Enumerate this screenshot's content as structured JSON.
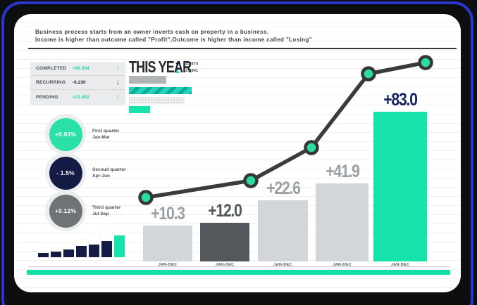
{
  "colors": {
    "frame_blue": "#2b36cf",
    "accent_green": "#12dea6",
    "navy": "#141b45"
  },
  "header": {
    "line1": "Business process starts from an owner inverts cash on property in a business.",
    "line2": "Income is higher than outcome called \"Profit\",Outcome is higher than income called \"Losing\""
  },
  "stats": {
    "rows": [
      {
        "label": "COMPLETED",
        "value": "+86.054",
        "arrow": "↑",
        "direction": "up"
      },
      {
        "label": "RECURRING",
        "value": "-6.230",
        "arrow": "↓",
        "direction": "down"
      },
      {
        "label": "PENDING",
        "value": "+23.402",
        "arrow": "↑",
        "direction": "up"
      }
    ]
  },
  "quarters": [
    {
      "pct": "+0.83%",
      "title": "First quarter",
      "range": "Jan-Mar",
      "color": "#2ae0a8"
    },
    {
      "pct": "- 1.5%",
      "title": "Secoud quarter",
      "range": "Apr-Jun",
      "color": "#141b45"
    },
    {
      "pct": "+0.12%",
      "title": "Third quarter",
      "range": "Jul-Sep",
      "color": "#6e7376"
    }
  ],
  "chart_data": [
    {
      "type": "bar",
      "title": "THIS YEAR",
      "legend": [
        {
          "marker": "triangle-down",
          "color": "#141b45",
          "label": "32.8875"
        },
        {
          "marker": "triangle-up",
          "color": "#2bd9c2",
          "label": "42.9841"
        }
      ],
      "categories": [
        "JAN-DEC",
        "JAN-DEC",
        "JAN-DEC",
        "JAN-DEC",
        "JAN-DEC"
      ],
      "values": [
        10.3,
        12.0,
        22.6,
        41.9,
        83.0
      ],
      "value_labels": [
        "+10.3",
        "+12.0",
        "+22.6",
        "+41.9",
        "+83.0"
      ],
      "bar_colors": [
        "#d3d6d9",
        "#53585c",
        "#d3d6d9",
        "#d3d6d9",
        "#16e2ab"
      ],
      "label_colors": [
        "#989fa5",
        "#53585c",
        "#989fa5",
        "#989fa5",
        "#16235f"
      ],
      "overlay_line": {
        "description": "dark trend line with green dot markers, one per bar, rising left to right",
        "points_pct_of_axis": [
          32,
          40,
          56,
          93,
          99
        ],
        "line_color": "#3a3c3b",
        "dot_fill": "#2bdc9f",
        "dot_stroke": "#353736"
      },
      "ylim": [
        0,
        100
      ],
      "grid": "faint horizontal dotted lines"
    },
    {
      "type": "bar",
      "orientation": "horizontal",
      "name": "this-year-progress-bars",
      "bars": [
        {
          "pattern": "solid",
          "color": "#b0b4b7",
          "length": 53
        },
        {
          "pattern": "diagonal-hatch",
          "color": "#22d3b8",
          "length": 89
        },
        {
          "pattern": "dotted",
          "color": "#e2e4e5",
          "length": 79
        },
        {
          "pattern": "solid",
          "color": "#17e3ac",
          "length": 30
        }
      ]
    },
    {
      "type": "bar",
      "name": "mini-growth-chart",
      "tracks": [
        6,
        11,
        18,
        26,
        31,
        41,
        44
      ],
      "fills": [
        6,
        8,
        11,
        16,
        18,
        23,
        31
      ],
      "fill_colors": [
        "#141b45",
        "#141b45",
        "#141b45",
        "#141b45",
        "#141b45",
        "#141b45",
        "#16e2ab"
      ]
    }
  ]
}
